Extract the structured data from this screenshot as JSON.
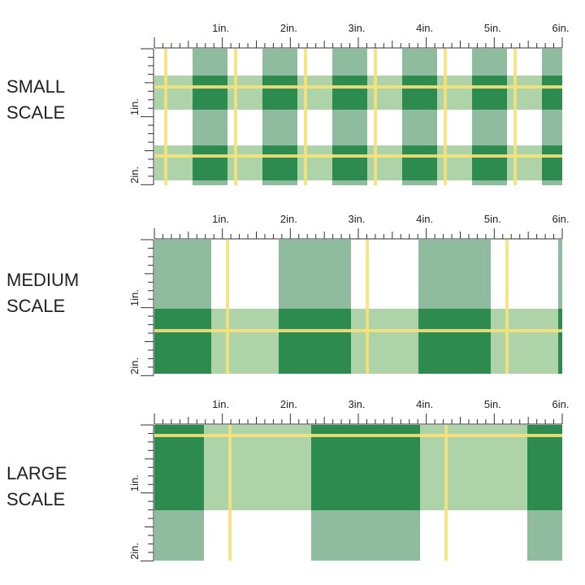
{
  "panels": [
    {
      "label": [
        "SMALL",
        "SCALE"
      ]
    },
    {
      "label": [
        "MEDIUM",
        "SCALE"
      ]
    },
    {
      "label": [
        "LARGE",
        "SCALE"
      ]
    }
  ],
  "ruler": {
    "x_labels": [
      "1in.",
      "2in.",
      "3in.",
      "4in.",
      "5in.",
      "6in."
    ],
    "y_labels": [
      "1in.",
      "2in."
    ]
  }
}
